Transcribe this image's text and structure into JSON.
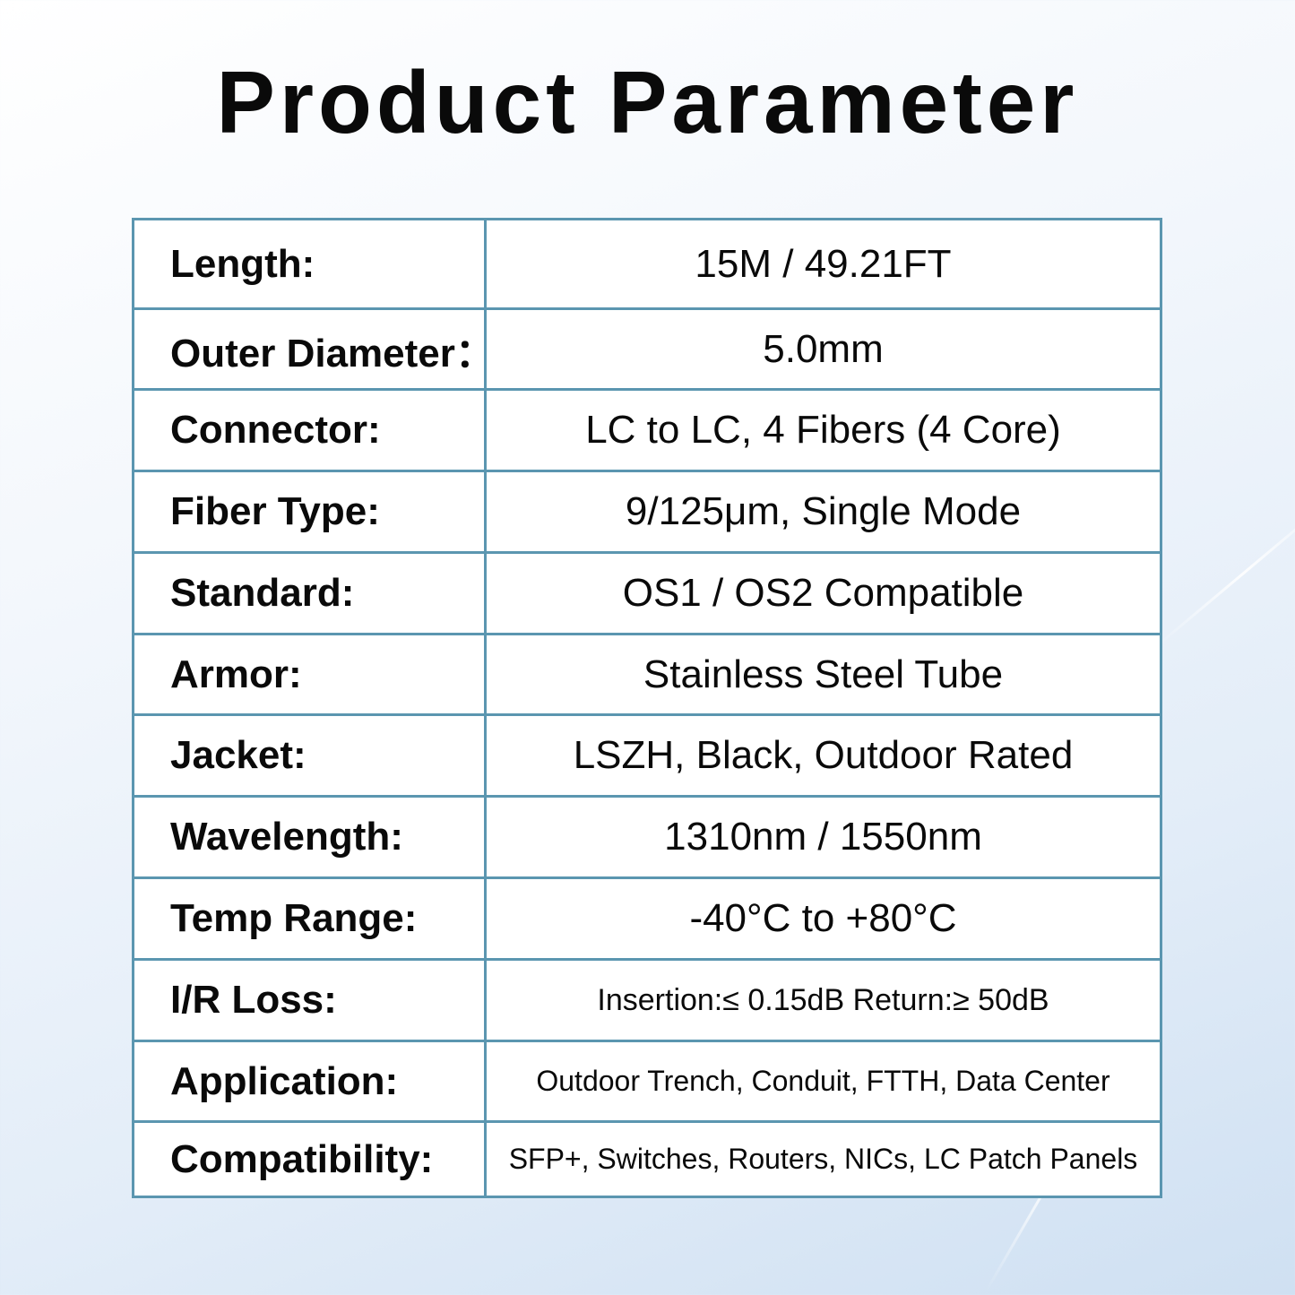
{
  "title": "Product Parameter",
  "border_color": "#5b96b0",
  "rows": [
    {
      "label": "Length:",
      "value": "15M / 49.21FT"
    },
    {
      "label": "Outer Diameter：",
      "value": "5.0mm"
    },
    {
      "label": "Connector:",
      "value": "LC to LC, 4 Fibers (4 Core)"
    },
    {
      "label": "Fiber Type:",
      "value": "9/125μm, Single Mode"
    },
    {
      "label": "Standard:",
      "value": "OS1 / OS2 Compatible"
    },
    {
      "label": "Armor:",
      "value": "Stainless Steel Tube"
    },
    {
      "label": "Jacket:",
      "value": "LSZH, Black, Outdoor Rated"
    },
    {
      "label": "Wavelength:",
      "value": "1310nm / 1550nm"
    },
    {
      "label": "Temp Range:",
      "value": "-40°C  to +80°C"
    },
    {
      "label": "I/R Loss:",
      "value": "Insertion:≤ 0.15dB  Return:≥ 50dB"
    },
    {
      "label": "Application:",
      "value": "Outdoor Trench, Conduit, FTTH, Data Center"
    },
    {
      "label": "Compatibility:",
      "value": "SFP+, Switches, Routers, NICs, LC Patch Panels"
    }
  ]
}
